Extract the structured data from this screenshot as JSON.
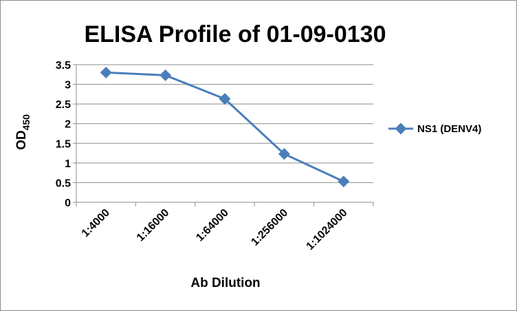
{
  "chart_data": {
    "type": "line",
    "title": "ELISA Profile of 01-09-0130",
    "xlabel": "Ab Dilution",
    "ylabel": "OD",
    "ylabel_subscript": "450",
    "categories": [
      "1:4000",
      "1:16000",
      "1:64000",
      "1:256000",
      "1:1024000"
    ],
    "series": [
      {
        "name": "NS1 (DENV4)",
        "values": [
          3.3,
          3.23,
          2.63,
          1.23,
          0.53
        ],
        "color": "#4a7ebb",
        "marker": "diamond"
      }
    ],
    "ylim": [
      0,
      3.5
    ],
    "yticks": [
      "0",
      "0.5",
      "1",
      "1.5",
      "2",
      "2.5",
      "3",
      "3.5"
    ],
    "grid": true,
    "legend": "right"
  }
}
